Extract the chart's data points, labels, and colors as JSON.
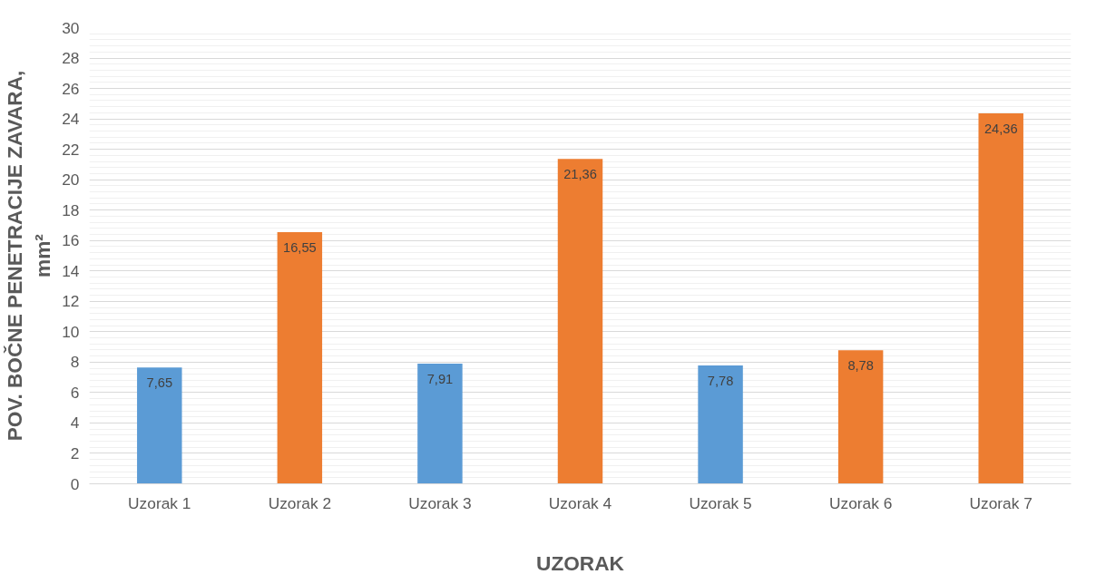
{
  "chart_data": {
    "type": "bar",
    "xlabel": "UZORAK",
    "ylabel": "POV. BOČNE PENETRACIJE ZAVARA,\nmm²",
    "categories": [
      "Uzorak 1",
      "Uzorak 2",
      "Uzorak 3",
      "Uzorak 4",
      "Uzorak 5",
      "Uzorak 6",
      "Uzorak 7"
    ],
    "values": [
      7.65,
      16.55,
      7.91,
      21.36,
      7.78,
      8.78,
      24.36
    ],
    "value_labels": [
      "7,65",
      "16,55",
      "7,91",
      "21,36",
      "7,78",
      "8,78",
      "24,36"
    ],
    "colors": [
      "#5b9bd5",
      "#ed7d31",
      "#5b9bd5",
      "#ed7d31",
      "#5b9bd5",
      "#ed7d31",
      "#ed7d31"
    ],
    "ylim": [
      0,
      30
    ],
    "yticks": [
      0,
      2,
      4,
      6,
      8,
      10,
      12,
      14,
      16,
      18,
      20,
      22,
      24,
      26,
      28,
      30
    ],
    "grid": "y"
  }
}
